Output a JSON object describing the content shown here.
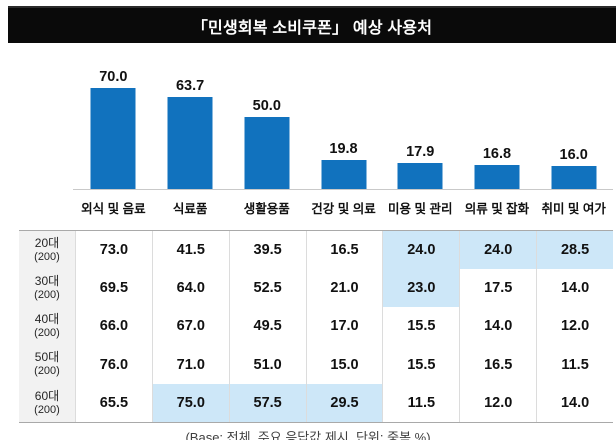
{
  "title": "「민생회복 소비쿠폰」 예상 사용처",
  "footnote": "(Base: 전체, 주요 응답값 제시, 단위: 중복 %)",
  "colors": {
    "bar": "#1172BE",
    "cell_highlight": "#CDE7F8",
    "row_header_bg": "#F2F2F2",
    "title_bg": "#0A0A0A",
    "title_fg": "#FFFFFF"
  },
  "chart_data": {
    "type": "bar",
    "title": "「민생회복 소비쿠폰」 예상 사용처",
    "categories": [
      "외식 및 음료",
      "식료품",
      "생활용품",
      "건강 및 의료",
      "미용 및 관리",
      "의류 및 잡화",
      "취미 및 여가"
    ],
    "values": [
      70.0,
      63.7,
      50.0,
      19.8,
      17.9,
      16.8,
      16.0
    ],
    "value_labels": [
      "70.0",
      "63.7",
      "50.0",
      "19.8",
      "17.9",
      "16.8",
      "16.0"
    ],
    "unit": "중복 %",
    "ylim": [
      0,
      80
    ],
    "grid": false,
    "legend": "none",
    "table": {
      "columns": [
        "외식 및 음료",
        "식료품",
        "생활용품",
        "건강 및 의료",
        "미용 및 관리",
        "의류 및 잡화",
        "취미 및 여가"
      ],
      "rows": [
        {
          "group": "20대",
          "base": "(200)",
          "values": [
            73.0,
            41.5,
            39.5,
            16.5,
            24.0,
            24.0,
            28.5
          ],
          "highlighted_columns": [
            4,
            5,
            6
          ]
        },
        {
          "group": "30대",
          "base": "(200)",
          "values": [
            69.5,
            64.0,
            52.5,
            21.0,
            23.0,
            17.5,
            14.0
          ],
          "highlighted_columns": [
            4
          ]
        },
        {
          "group": "40대",
          "base": "(200)",
          "values": [
            66.0,
            67.0,
            49.5,
            17.0,
            15.5,
            14.0,
            12.0
          ],
          "highlighted_columns": []
        },
        {
          "group": "50대",
          "base": "(200)",
          "values": [
            76.0,
            71.0,
            51.0,
            15.0,
            15.5,
            16.5,
            11.5
          ],
          "highlighted_columns": []
        },
        {
          "group": "60대",
          "base": "(200)",
          "values": [
            65.5,
            75.0,
            57.5,
            29.5,
            11.5,
            12.0,
            14.0
          ],
          "highlighted_columns": [
            1,
            2,
            3
          ]
        }
      ]
    }
  }
}
